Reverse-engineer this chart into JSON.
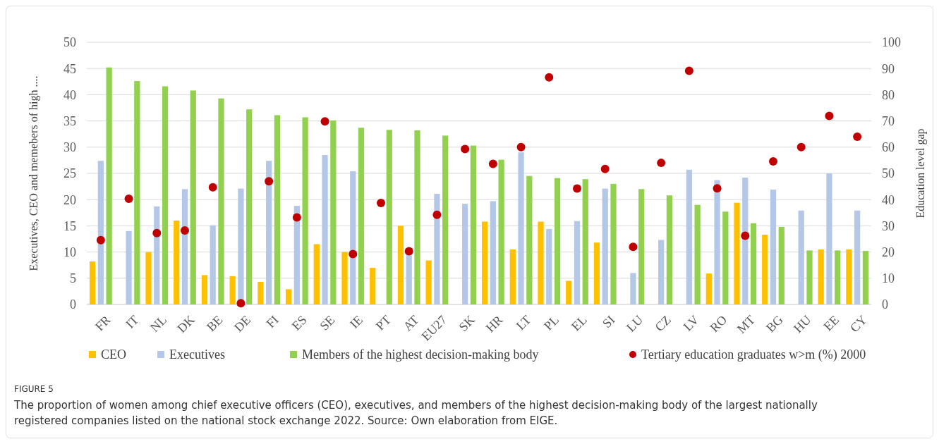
{
  "chart_data": {
    "type": "bar",
    "categories": [
      "FR",
      "IT",
      "NL",
      "DK",
      "BE",
      "DE",
      "FI",
      "ES",
      "SE",
      "IE",
      "PT",
      "AT",
      "EU27",
      "SK",
      "HR",
      "LT",
      "PL",
      "EL",
      "SI",
      "LU",
      "CZ",
      "LV",
      "RO",
      "MT",
      "BG",
      "HU",
      "EE",
      "CY"
    ],
    "series": [
      {
        "name": "CEO",
        "color": "#ffc000",
        "values": [
          8.2,
          null,
          10,
          16,
          5.6,
          5.4,
          4.3,
          2.9,
          11.5,
          10,
          7,
          15,
          8.4,
          null,
          15.8,
          10.5,
          15.8,
          4.5,
          11.8,
          null,
          null,
          null,
          5.9,
          19.4,
          13.3,
          null,
          10.5,
          10.5
        ]
      },
      {
        "name": "Executives",
        "color": "#b4c7e7",
        "values": [
          27.4,
          14,
          18.7,
          22,
          15.1,
          22.1,
          27.4,
          18.8,
          28.5,
          25.4,
          null,
          9.7,
          21.1,
          19.2,
          19.7,
          29,
          14.4,
          15.9,
          22.1,
          6,
          12.3,
          25.7,
          23.7,
          24.2,
          21.9,
          17.9,
          25,
          17.9
        ]
      },
      {
        "name": "Members of the highest decision-making body",
        "color": "#92d050",
        "values": [
          45.2,
          42.6,
          41.6,
          40.8,
          39.3,
          37.2,
          36.1,
          35.7,
          35.1,
          33.7,
          33.3,
          33.2,
          32.2,
          30.3,
          27.6,
          24.5,
          24.1,
          23.9,
          23,
          22,
          20.8,
          19,
          17.7,
          15.5,
          14.8,
          10.3,
          10.3,
          10.2
        ]
      },
      {
        "name": "Tertiary education graduates w>m (%) 2000",
        "color": "#c00000",
        "type": "scatter",
        "axis": "y2",
        "marker": "circle",
        "values": [
          24.5,
          40.3,
          27.2,
          28.2,
          44.7,
          0.5,
          47,
          33.2,
          69.8,
          19.2,
          38.7,
          20.3,
          34.2,
          59.3,
          53.6,
          60,
          86.6,
          44.2,
          51.7,
          22,
          54,
          89.1,
          44.3,
          26.2,
          54.6,
          60,
          71.9,
          64
        ]
      }
    ],
    "ylabel": "Executives, CEO and memebers of high ....",
    "y2label": "Education level gap",
    "ylim": [
      0,
      50
    ],
    "yticks": [
      0,
      5,
      10,
      15,
      20,
      25,
      30,
      35,
      40,
      45,
      50
    ],
    "y2lim": [
      0,
      100
    ],
    "y2ticks": [
      0,
      10,
      20,
      30,
      40,
      50,
      60,
      70,
      80,
      90,
      100
    ],
    "grid": "y",
    "legend": "bottom",
    "annotations": [
      "FIGURE 5",
      "The proportion of women among chief executive officers (CEO), executives, and members of the highest decision-making body of the largest nationally registered companies listed on the national stock exchange 2022. Source: Own elaboration from EIGE."
    ]
  }
}
